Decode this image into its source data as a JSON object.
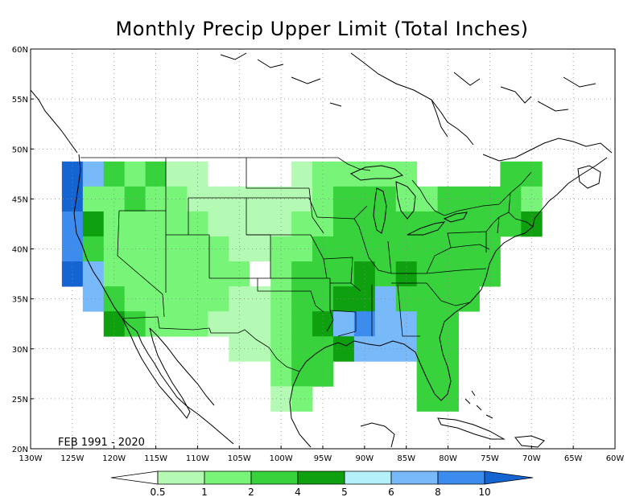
{
  "title": "Monthly Precip Upper Limit (Total Inches)",
  "period_label": "FEB 1991 - 2020",
  "map": {
    "lon_range": [
      -130,
      -60
    ],
    "lat_range": [
      20,
      60
    ],
    "lat_ticks": [
      "20N",
      "25N",
      "30N",
      "35N",
      "40N",
      "45N",
      "50N",
      "55N",
      "60N"
    ],
    "lon_ticks": [
      "130W",
      "125W",
      "120W",
      "115W",
      "110W",
      "105W",
      "100W",
      "95W",
      "90W",
      "85W",
      "80W",
      "75W",
      "70W",
      "65W",
      "60W"
    ]
  },
  "colorbar": {
    "labels": [
      "0.5",
      "1",
      "2",
      "4",
      "5",
      "6",
      "8",
      "10"
    ],
    "colors": [
      "#ffffff",
      "#b4fab4",
      "#78f578",
      "#37d23c",
      "#0fa00f",
      "#b4f0fa",
      "#78b9fa",
      "#3c8cf0",
      "#1464d2"
    ]
  },
  "chart_data": {
    "type": "heatmap",
    "title": "Monthly Precip Upper Limit (Total Inches)",
    "cell_size_deg": 2.5,
    "bins": [
      0,
      0.5,
      1,
      2,
      4,
      5,
      6,
      8,
      10
    ],
    "rows": [
      {
        "lat": 47.5,
        "cells": [
          [
            -125,
            "10+"
          ],
          [
            -122.5,
            "6-8"
          ],
          [
            -120,
            "2-4"
          ],
          [
            -117.5,
            "1-2"
          ],
          [
            -115,
            "2-4"
          ],
          [
            -112.5,
            "0.5-1"
          ],
          [
            -110,
            "0.5-1"
          ],
          [
            -107.5,
            "0-0.5"
          ],
          [
            -105,
            "0-0.5"
          ],
          [
            -102.5,
            "0-0.5"
          ],
          [
            -100,
            "0-0.5"
          ],
          [
            -97.5,
            "0.5-1"
          ],
          [
            -95,
            "1-2"
          ],
          [
            -92.5,
            "1-2"
          ],
          [
            -90,
            "1-2"
          ],
          [
            -87.5,
            "1-2"
          ],
          [
            -85,
            "1-2"
          ],
          [
            -72.5,
            "2-4"
          ],
          [
            -70,
            "2-4"
          ]
        ]
      },
      {
        "lat": 45,
        "cells": [
          [
            -125,
            "10+"
          ],
          [
            -122.5,
            "1-2"
          ],
          [
            -120,
            "1-2"
          ],
          [
            -117.5,
            "2-4"
          ],
          [
            -115,
            "1-2"
          ],
          [
            -112.5,
            "1-2"
          ],
          [
            -110,
            "0.5-1"
          ],
          [
            -107.5,
            "0.5-1"
          ],
          [
            -105,
            "0.5-1"
          ],
          [
            -102.5,
            "0.5-1"
          ],
          [
            -100,
            "0.5-1"
          ],
          [
            -97.5,
            "0.5-1"
          ],
          [
            -95,
            "1-2"
          ],
          [
            -92.5,
            "2-4"
          ],
          [
            -90,
            "2-4"
          ],
          [
            -87.5,
            "2-4"
          ],
          [
            -85,
            "1-2"
          ],
          [
            -82.5,
            "1-2"
          ],
          [
            -80,
            "2-4"
          ],
          [
            -77.5,
            "2-4"
          ],
          [
            -75,
            "2-4"
          ],
          [
            -72.5,
            "2-4"
          ],
          [
            -70,
            "1-2"
          ]
        ]
      },
      {
        "lat": 42.5,
        "cells": [
          [
            -125,
            "8-10"
          ],
          [
            -122.5,
            "4-5"
          ],
          [
            -120,
            "1-2"
          ],
          [
            -117.5,
            "1-2"
          ],
          [
            -115,
            "1-2"
          ],
          [
            -112.5,
            "1-2"
          ],
          [
            -110,
            "1-2"
          ],
          [
            -107.5,
            "0.5-1"
          ],
          [
            -105,
            "0.5-1"
          ],
          [
            -102.5,
            "0.5-1"
          ],
          [
            -100,
            "0.5-1"
          ],
          [
            -97.5,
            "1-2"
          ],
          [
            -95,
            "1-2"
          ],
          [
            -92.5,
            "2-4"
          ],
          [
            -90,
            "2-4"
          ],
          [
            -87.5,
            "2-4"
          ],
          [
            -85,
            "2-4"
          ],
          [
            -82.5,
            "2-4"
          ],
          [
            -80,
            "2-4"
          ],
          [
            -77.5,
            "2-4"
          ],
          [
            -75,
            "2-4"
          ],
          [
            -72.5,
            "2-4"
          ],
          [
            -70,
            "4-5"
          ]
        ]
      },
      {
        "lat": 40,
        "cells": [
          [
            -125,
            "8-10"
          ],
          [
            -122.5,
            "2-4"
          ],
          [
            -120,
            "1-2"
          ],
          [
            -117.5,
            "1-2"
          ],
          [
            -115,
            "1-2"
          ],
          [
            -112.5,
            "1-2"
          ],
          [
            -110,
            "1-2"
          ],
          [
            -107.5,
            "1-2"
          ],
          [
            -105,
            "0.5-1"
          ],
          [
            -102.5,
            "0.5-1"
          ],
          [
            -100,
            "1-2"
          ],
          [
            -97.5,
            "1-2"
          ],
          [
            -95,
            "2-4"
          ],
          [
            -92.5,
            "2-4"
          ],
          [
            -90,
            "2-4"
          ],
          [
            -87.5,
            "2-4"
          ],
          [
            -85,
            "2-4"
          ],
          [
            -82.5,
            "2-4"
          ],
          [
            -80,
            "2-4"
          ],
          [
            -77.5,
            "2-4"
          ],
          [
            -75,
            "2-4"
          ]
        ]
      },
      {
        "lat": 37.5,
        "cells": [
          [
            -125,
            "10+"
          ],
          [
            -122.5,
            "6-8"
          ],
          [
            -120,
            "1-2"
          ],
          [
            -117.5,
            "1-2"
          ],
          [
            -115,
            "1-2"
          ],
          [
            -112.5,
            "1-2"
          ],
          [
            -110,
            "1-2"
          ],
          [
            -107.5,
            "1-2"
          ],
          [
            -105,
            "1-2"
          ],
          [
            -102.5,
            "0-0.5"
          ],
          [
            -100,
            "1-2"
          ],
          [
            -97.5,
            "2-4"
          ],
          [
            -95,
            "2-4"
          ],
          [
            -92.5,
            "2-4"
          ],
          [
            -90,
            "4-5"
          ],
          [
            -87.5,
            "2-4"
          ],
          [
            -85,
            "4-5"
          ],
          [
            -82.5,
            "2-4"
          ],
          [
            -80,
            "2-4"
          ],
          [
            -77.5,
            "2-4"
          ],
          [
            -75,
            "2-4"
          ]
        ]
      },
      {
        "lat": 35,
        "cells": [
          [
            -122.5,
            "6-8"
          ],
          [
            -120,
            "2-4"
          ],
          [
            -117.5,
            "1-2"
          ],
          [
            -115,
            "1-2"
          ],
          [
            -112.5,
            "1-2"
          ],
          [
            -110,
            "1-2"
          ],
          [
            -107.5,
            "1-2"
          ],
          [
            -105,
            "0.5-1"
          ],
          [
            -102.5,
            "0.5-1"
          ],
          [
            -100,
            "1-2"
          ],
          [
            -97.5,
            "2-4"
          ],
          [
            -95,
            "2-4"
          ],
          [
            -92.5,
            "4-5"
          ],
          [
            -90,
            "4-5"
          ],
          [
            -87.5,
            "6-8"
          ],
          [
            -85,
            "2-4"
          ],
          [
            -82.5,
            "2-4"
          ],
          [
            -80,
            "2-4"
          ],
          [
            -77.5,
            "2-4"
          ]
        ]
      },
      {
        "lat": 32.5,
        "cells": [
          [
            -120,
            "4-5"
          ],
          [
            -117.5,
            "2-4"
          ],
          [
            -115,
            "1-2"
          ],
          [
            -112.5,
            "1-2"
          ],
          [
            -110,
            "1-2"
          ],
          [
            -107.5,
            "0.5-1"
          ],
          [
            -105,
            "0.5-1"
          ],
          [
            -102.5,
            "0.5-1"
          ],
          [
            -100,
            "1-2"
          ],
          [
            -97.5,
            "2-4"
          ],
          [
            -95,
            "4-5"
          ],
          [
            -92.5,
            "6-8"
          ],
          [
            -90,
            "8-10"
          ],
          [
            -87.5,
            "6-8"
          ],
          [
            -85,
            "6-8"
          ],
          [
            -82.5,
            "2-4"
          ],
          [
            -80,
            "2-4"
          ]
        ]
      },
      {
        "lat": 30,
        "cells": [
          [
            -105,
            "0.5-1"
          ],
          [
            -102.5,
            "0.5-1"
          ],
          [
            -100,
            "1-2"
          ],
          [
            -97.5,
            "2-4"
          ],
          [
            -95,
            "2-4"
          ],
          [
            -92.5,
            "4-5"
          ],
          [
            -90,
            "6-8"
          ],
          [
            -87.5,
            "6-8"
          ],
          [
            -85,
            "6-8"
          ],
          [
            -82.5,
            "2-4"
          ],
          [
            -80,
            "2-4"
          ]
        ]
      },
      {
        "lat": 27.5,
        "cells": [
          [
            -100,
            "1-2"
          ],
          [
            -97.5,
            "2-4"
          ],
          [
            -95,
            "2-4"
          ],
          [
            -82.5,
            "2-4"
          ],
          [
            -80,
            "2-4"
          ]
        ]
      },
      {
        "lat": 25,
        "cells": [
          [
            -100,
            "0.5-1"
          ],
          [
            -97.5,
            "1-2"
          ],
          [
            -82.5,
            "2-4"
          ],
          [
            -80,
            "2-4"
          ]
        ]
      }
    ]
  }
}
